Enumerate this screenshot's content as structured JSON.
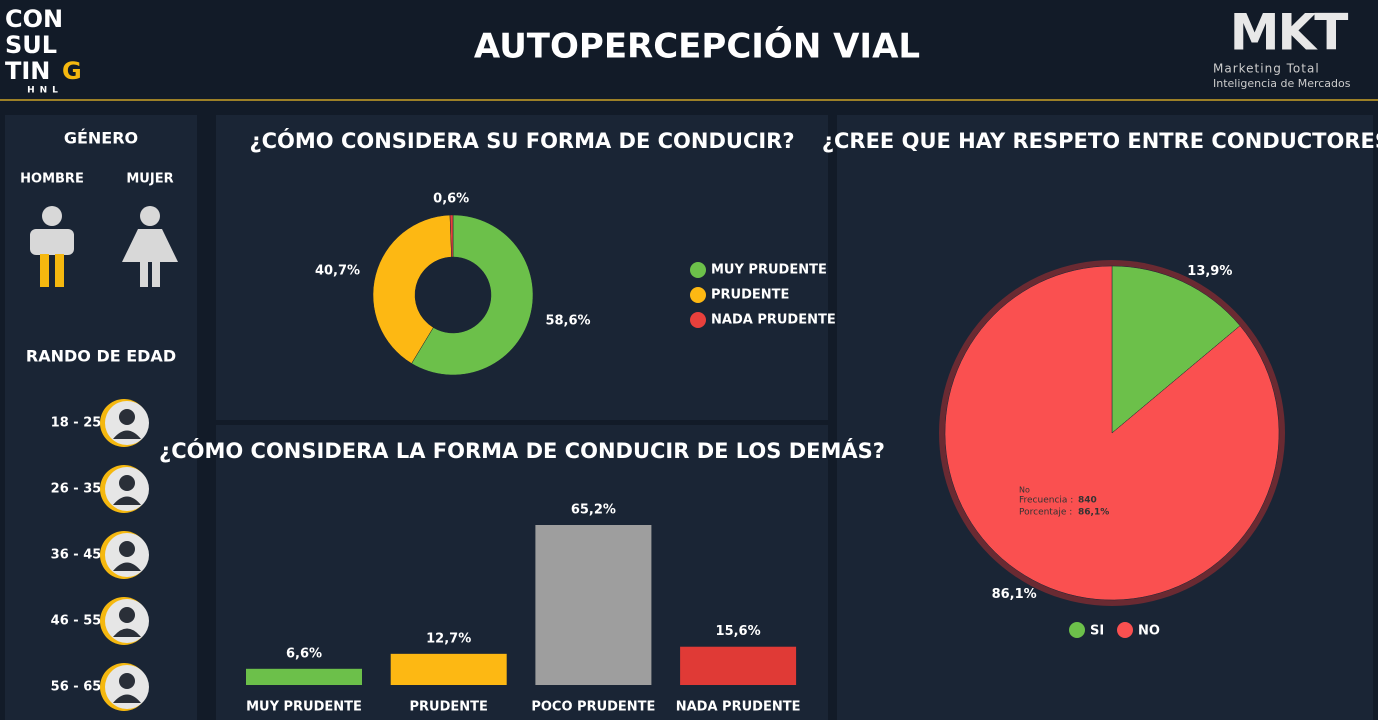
{
  "header": {
    "logo_lines": [
      "CON",
      "SUL",
      "TIN",
      "G",
      "HNL"
    ],
    "title": "AUTOPERCEPCIÓN VIAL",
    "brand": "MKT",
    "brand_lines": [
      "Marketing Total",
      "Inteligencia de Mercados"
    ]
  },
  "sidebar": {
    "gender_title": "GÉNERO",
    "genders": [
      "HOMBRE",
      "MUJER"
    ],
    "age_title": "RANDO DE EDAD",
    "ages": [
      "18 - 25",
      "26 - 35",
      "36 - 45",
      "46 - 55",
      "56 - 65"
    ]
  },
  "chart_data": [
    {
      "type": "donut",
      "title": "¿CÓMO CONSIDERA SU FORMA DE CONDUCIR?",
      "categories": [
        "MUY PRUDENTE",
        "PRUDENTE",
        "NADA PRUDENTE"
      ],
      "values": [
        58.6,
        40.7,
        0.6
      ],
      "value_labels": [
        "58,6%",
        "40,7%",
        "0,6%"
      ],
      "colors": [
        "#6cc04a",
        "#fdb813",
        "#e8403c"
      ]
    },
    {
      "type": "bar",
      "title": "¿CÓMO CONSIDERA LA FORMA DE CONDUCIR DE LOS DEMÁS?",
      "categories": [
        "MUY PRUDENTE",
        "PRUDENTE",
        "POCO PRUDENTE",
        "NADA PRUDENTE"
      ],
      "values": [
        6.6,
        12.7,
        65.2,
        15.6
      ],
      "value_labels": [
        "6,6%",
        "12,7%",
        "65,2%",
        "15,6%"
      ],
      "colors": [
        "#6cc04a",
        "#fdb813",
        "#9e9e9e",
        "#e03a36"
      ]
    },
    {
      "type": "pie",
      "title": "¿CREE QUE HAY RESPETO ENTRE CONDUCTORES?",
      "categories": [
        "SI",
        "NO"
      ],
      "values": [
        13.9,
        86.1
      ],
      "value_labels": [
        "13,9%",
        "86,1%"
      ],
      "colors": [
        "#6cc04a",
        "#fa5050"
      ],
      "tooltip": {
        "name": "No",
        "frequency_label": "Frecuencia :",
        "frequency": 840,
        "percent_label": "Porcentaje :",
        "percent": "86,1%"
      }
    }
  ]
}
